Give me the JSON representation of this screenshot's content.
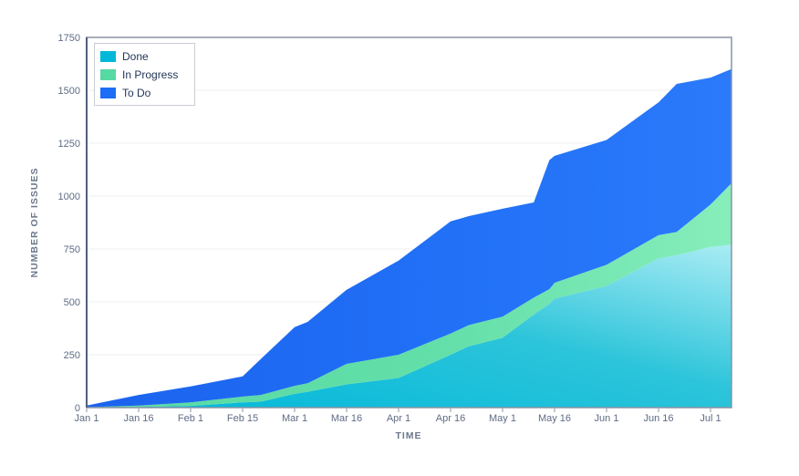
{
  "chart_data": {
    "type": "area",
    "stacked": true,
    "title": "",
    "xlabel": "TIME",
    "ylabel": "NUMBER OF ISSUES",
    "legend_position": "top-left",
    "grid": "horizontal",
    "x_tick_labels": [
      "Jan 1",
      "Jan 16",
      "Feb 1",
      "Feb 15",
      "Mar 1",
      "Mar 16",
      "Apr 1",
      "Apr 16",
      "May 1",
      "May 16",
      "Jun 1",
      "Jun 16",
      "Jul 1"
    ],
    "y_ticks": [
      0,
      250,
      500,
      750,
      1000,
      1250,
      1500,
      1750
    ],
    "ylim": [
      0,
      1750
    ],
    "x_points": [
      0,
      1,
      2,
      3,
      3.35,
      4,
      4.25,
      5,
      6,
      7,
      7.35,
      8,
      8.6,
      8.9,
      9,
      10,
      11,
      11.35,
      12,
      12.4
    ],
    "series": [
      {
        "name": "Done",
        "color": "#00b8d9",
        "gradient": [
          "#00b8d9",
          "#2cc4da",
          "#a9ecf4"
        ],
        "gradient_direction": "diag",
        "values": [
          0,
          3,
          8,
          25,
          28,
          65,
          75,
          110,
          140,
          250,
          290,
          330,
          440,
          490,
          515,
          575,
          705,
          720,
          760,
          770
        ]
      },
      {
        "name": "In Progress",
        "color": "#57d9a3",
        "gradient": [
          "#57d9a3",
          "#63dfa9",
          "#87eebb"
        ],
        "gradient_direction": "horizontal",
        "values": [
          2,
          7,
          17,
          27,
          32,
          38,
          40,
          97,
          110,
          100,
          100,
          100,
          80,
          70,
          75,
          100,
          110,
          110,
          200,
          290
        ]
      },
      {
        "name": "To Do",
        "color": "#1d6ef5",
        "gradient": [
          "#1b63ee",
          "#2170f6",
          "#2b7afb"
        ],
        "gradient_direction": "horizontal",
        "values": [
          8,
          50,
          75,
          96,
          170,
          277,
          290,
          350,
          445,
          530,
          515,
          510,
          450,
          610,
          600,
          590,
          628,
          700,
          600,
          540
        ]
      }
    ],
    "colors": {
      "plot_border": "#8993a4",
      "y_axis_line": "#505f79",
      "gridline": "#efeff1",
      "tick_text": "#5e6c84",
      "axis_title_text": "#6b778c"
    }
  }
}
